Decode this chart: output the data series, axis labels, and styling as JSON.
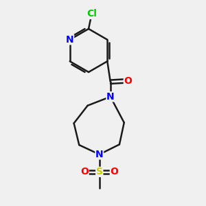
{
  "background_color": "#f0f0f0",
  "bond_color": "#1a1a1a",
  "atom_colors": {
    "N": "#0000ff",
    "O": "#ff0000",
    "Cl": "#00cc00",
    "S": "#cccc00",
    "C": "#1a1a1a"
  },
  "font_size_atom": 10,
  "fig_size": [
    3.0,
    3.0
  ],
  "dpi": 100,
  "xlim": [
    0,
    10
  ],
  "ylim": [
    0,
    10
  ]
}
